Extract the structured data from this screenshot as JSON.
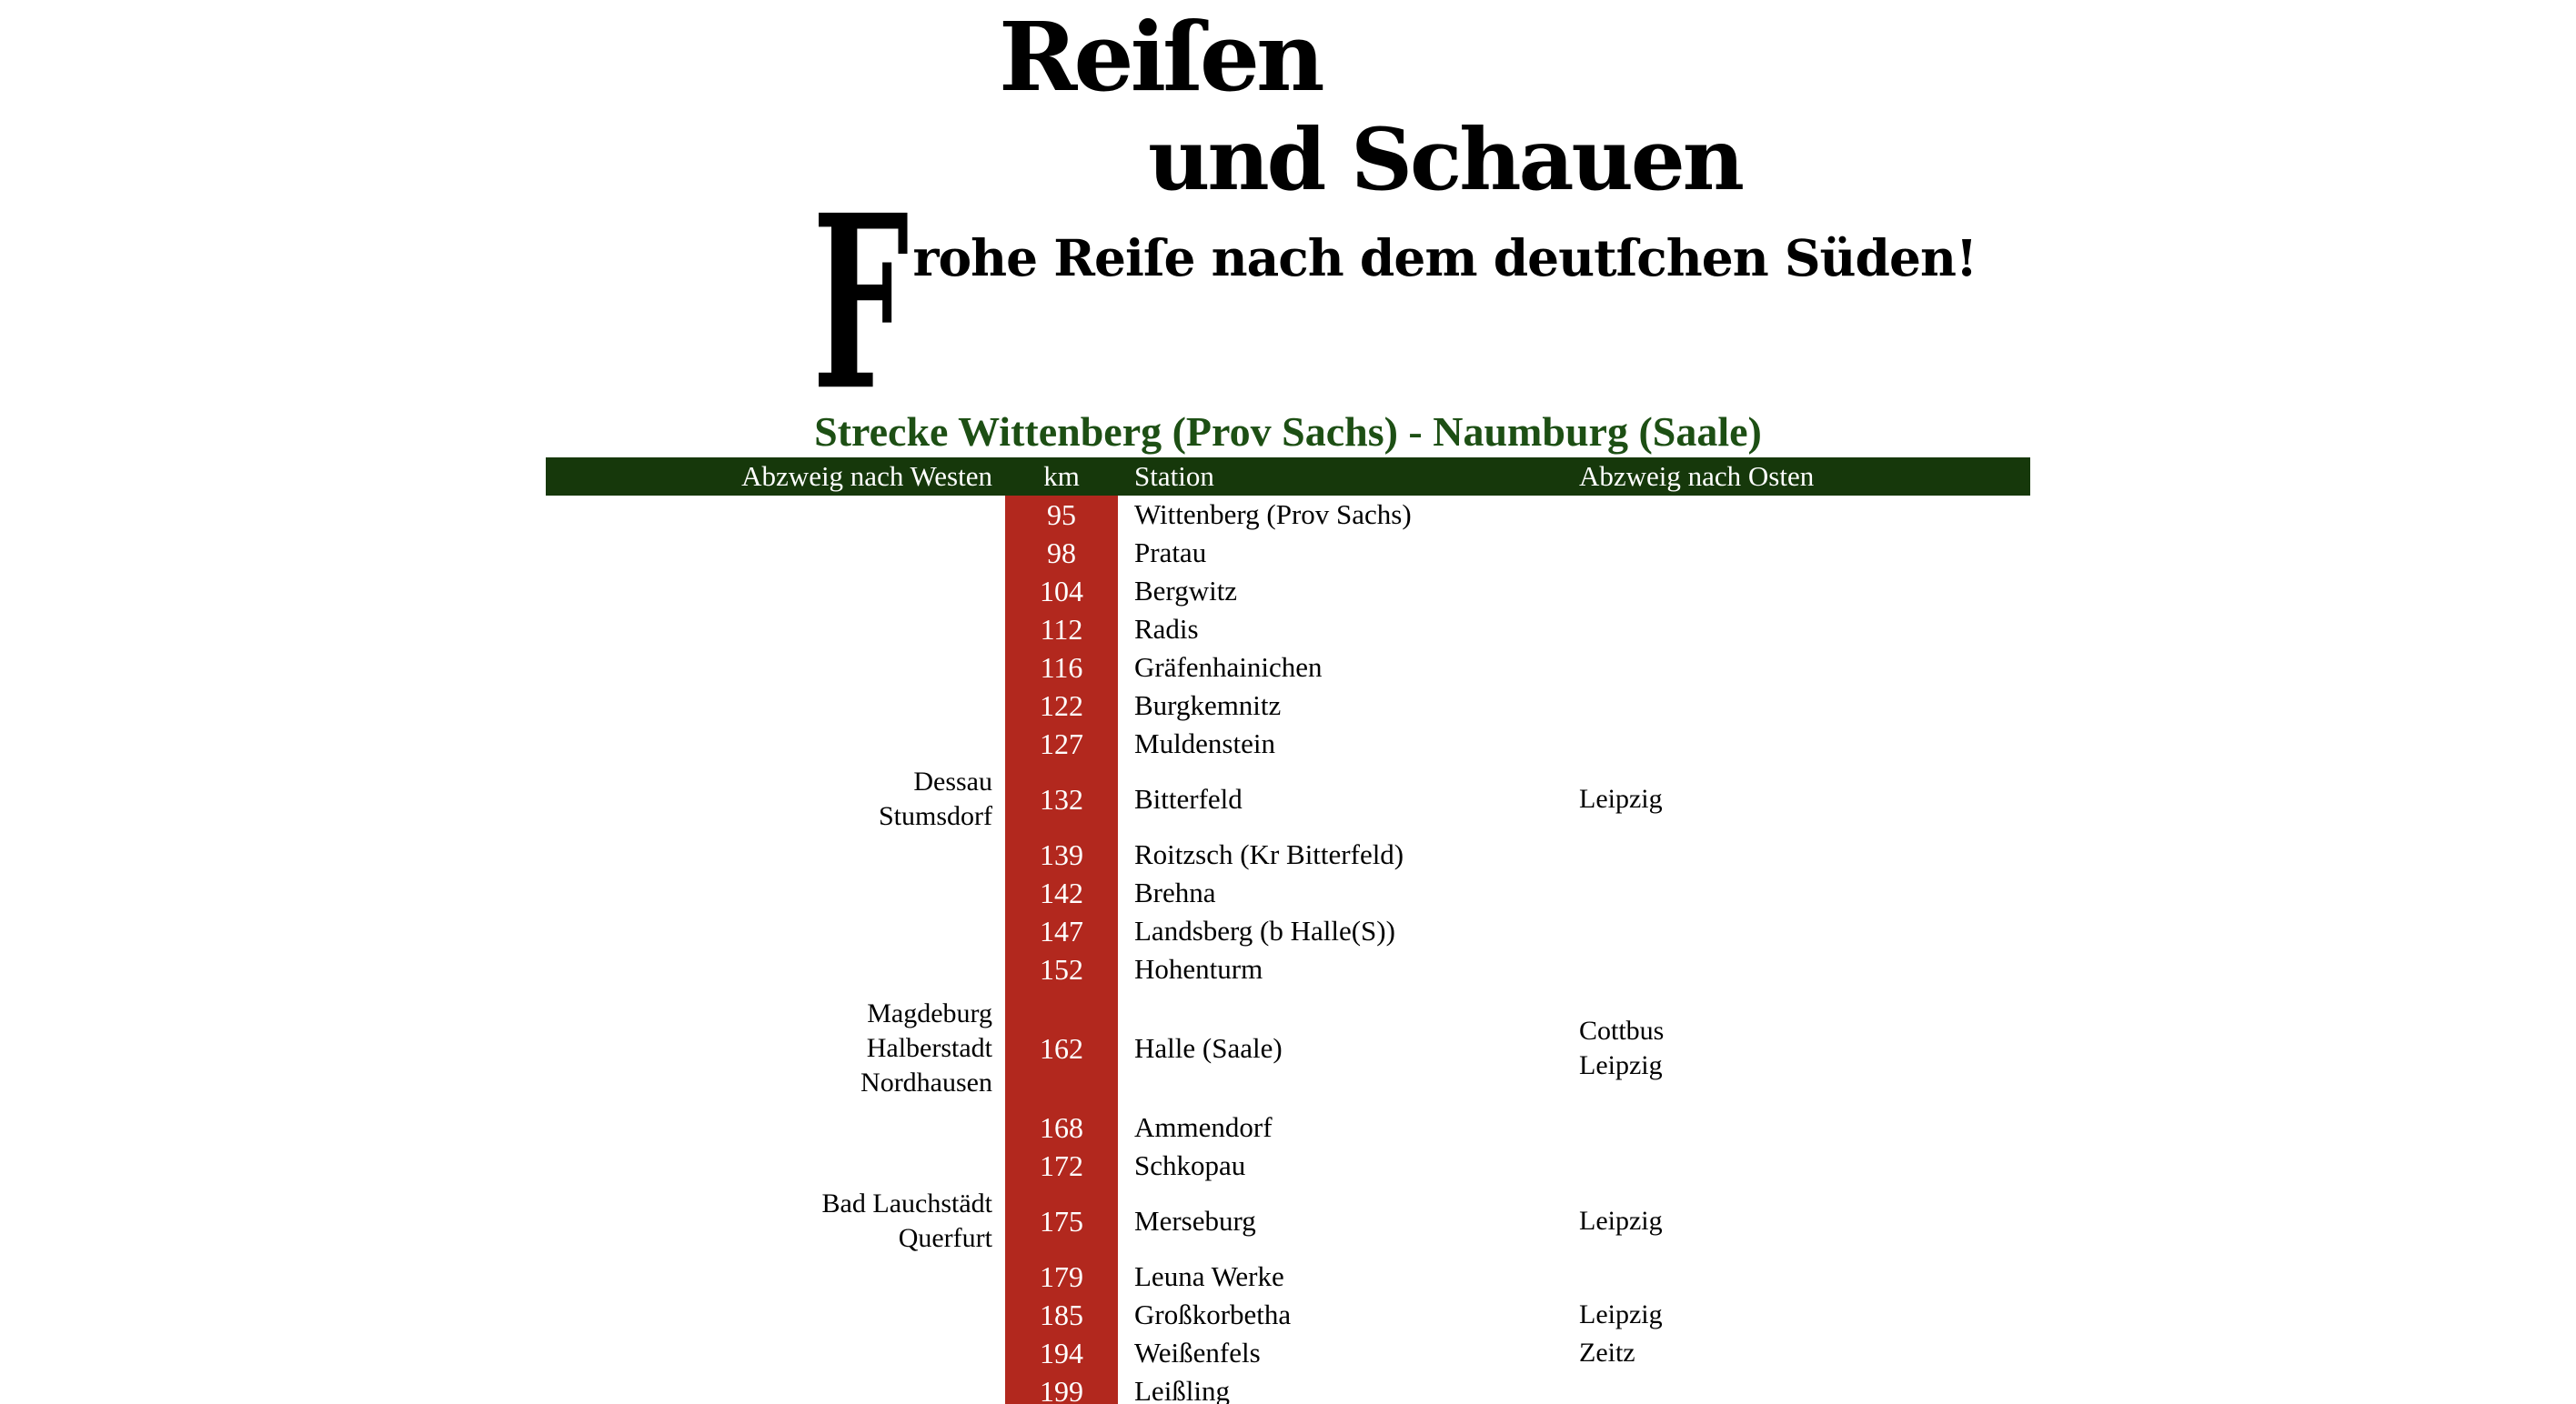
{
  "logo": {
    "line1": "Reiſen",
    "line2": "und Schauen",
    "tagline_initial": "F",
    "tagline_rest": "rohe Reiſe nach dem deutſchen Süden!"
  },
  "title": "Strecke Wittenberg (Prov Sachs) - Naumburg (Saale)",
  "colors": {
    "header_green": "#16380b",
    "km_red": "#b2281e",
    "title_green": "#1d4f14",
    "header_text": "#ffffff"
  },
  "table": {
    "headers": {
      "west": "Abzweig nach Westen",
      "km": "km",
      "station": "Station",
      "east": "Abzweig nach Osten"
    },
    "rows": [
      {
        "west": [],
        "km": "95",
        "station": "Wittenberg (Prov Sachs)",
        "east": []
      },
      {
        "west": [],
        "km": "98",
        "station": "Pratau",
        "east": []
      },
      {
        "west": [],
        "km": "104",
        "station": "Bergwitz",
        "east": []
      },
      {
        "west": [],
        "km": "112",
        "station": "Radis",
        "east": []
      },
      {
        "west": [],
        "km": "116",
        "station": "Gräfenhainichen",
        "east": []
      },
      {
        "west": [],
        "km": "122",
        "station": "Burgkemnitz",
        "east": []
      },
      {
        "west": [],
        "km": "127",
        "station": "Muldenstein",
        "east": []
      },
      {
        "west": [
          "Dessau",
          "Stumsdorf"
        ],
        "km": "132",
        "station": "Bitterfeld",
        "east": [
          "Leipzig"
        ]
      },
      {
        "west": [],
        "km": "139",
        "station": "Roitzsch (Kr Bitterfeld)",
        "east": []
      },
      {
        "west": [],
        "km": "142",
        "station": "Brehna",
        "east": []
      },
      {
        "west": [],
        "km": "147",
        "station": "Landsberg (b Halle(S))",
        "east": []
      },
      {
        "west": [],
        "km": "152",
        "station": "Hohenturm",
        "east": []
      },
      {
        "west": [
          "Magdeburg",
          "Halberstadt",
          "Nordhausen"
        ],
        "km": "162",
        "station": "Halle (Saale)",
        "east": [
          "Cottbus",
          "Leipzig"
        ]
      },
      {
        "west": [],
        "km": "168",
        "station": "Ammendorf",
        "east": []
      },
      {
        "west": [],
        "km": "172",
        "station": "Schkopau",
        "east": []
      },
      {
        "west": [
          "Bad Lauchstädt",
          "Querfurt"
        ],
        "km": "175",
        "station": "Merseburg",
        "east": [
          "Leipzig"
        ]
      },
      {
        "west": [],
        "km": "179",
        "station": "Leuna Werke",
        "east": []
      },
      {
        "west": [],
        "km": "185",
        "station": "Großkorbetha",
        "east": [
          "Leipzig"
        ]
      },
      {
        "west": [],
        "km": "194",
        "station": "Weißenfels",
        "east": [
          "Zeitz"
        ]
      },
      {
        "west": [],
        "km": "199",
        "station": "Leißling",
        "east": []
      }
    ]
  }
}
